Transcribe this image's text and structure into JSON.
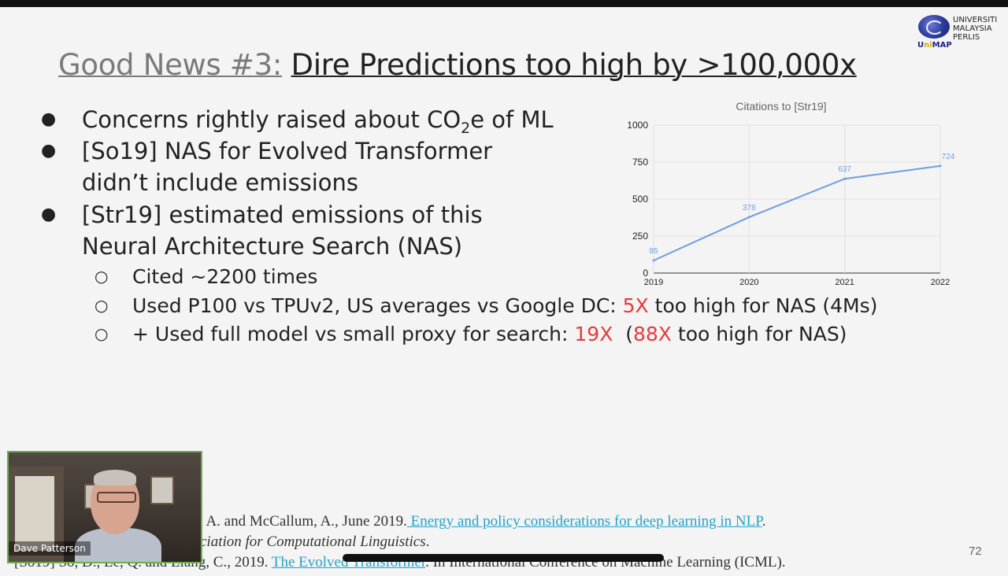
{
  "slide": {
    "title_prefix": "Good News #3:",
    "title_main": "Dire Predictions too high by >100,000x",
    "logo": {
      "line1": "UNIVERSITI",
      "line2": "MALAYSIA",
      "line3": "PERLIS",
      "abbr_a": "U",
      "abbr_b": "ni",
      "abbr_c": "MAP"
    },
    "bullets": [
      {
        "pre": "Concerns rightly raised about CO",
        "sub": "2",
        "post": "e of ML"
      },
      {
        "line1": "[So19] NAS for Evolved Transformer",
        "line2": "didn’t include emissions"
      },
      {
        "line1": "[Str19] estimated emissions of this",
        "line2": "Neural Architecture Search (NAS)"
      }
    ],
    "subbullets": [
      {
        "text": "Cited ~2200 times"
      },
      {
        "a": "Used P100 vs TPUv2, US averages vs Google DC: ",
        "red": "5X",
        "b": " too high for NAS (4Ms)"
      },
      {
        "a": "+ Used full model vs small proxy for search: ",
        "red1": "19X",
        "mid": "  (",
        "red2": "88X",
        "b": " too high for NAS)"
      }
    ],
    "references": {
      "line1_text": ", A. and McCallum, A., June 2019.",
      "line1_link": " Energy and policy considerations for deep learning in NLP",
      "line1_end": ".",
      "line2_text": "ciation for Computational Linguistics",
      "line2_end": ".",
      "line3_a": "[So19] So, D., Le, Q. and Liang, C., 2019.",
      "line3_link": "The Evolved Transformer",
      "line3_b": ". In International Conference on Machine Learning (ICML)."
    },
    "page_number": "72"
  },
  "chart_data": {
    "type": "line",
    "title": "Citations to [Str19]",
    "x": [
      "2019",
      "2020",
      "2021",
      "2022"
    ],
    "series": [
      {
        "values": [
          85,
          378,
          637,
          724
        ]
      }
    ],
    "data_labels": [
      "85",
      "378",
      "637",
      "724"
    ],
    "y_ticks": [
      "0",
      "250",
      "500",
      "750",
      "1000"
    ],
    "ylim": [
      0,
      1000
    ],
    "grid": true,
    "line_color": "#6f9ee0"
  },
  "video": {
    "participant_name": "Dave Patterson"
  }
}
